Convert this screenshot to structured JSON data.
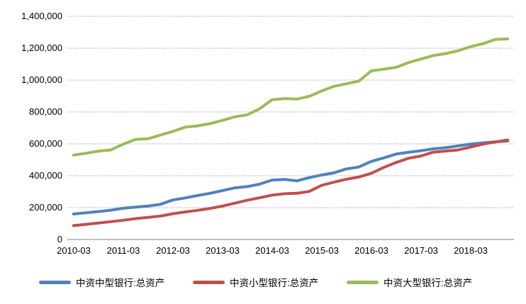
{
  "chart_data": {
    "type": "line",
    "title": "",
    "xlabel": "",
    "ylabel": "",
    "ylim": [
      0,
      1400000
    ],
    "y_tick_interval": 200000,
    "grid": "horizontal-dotted-gray",
    "legend_position": "bottom",
    "x": [
      "2010-03",
      "2010-06",
      "2010-09",
      "2010-12",
      "2011-03",
      "2011-06",
      "2011-09",
      "2011-12",
      "2012-03",
      "2012-06",
      "2012-09",
      "2012-12",
      "2013-03",
      "2013-06",
      "2013-09",
      "2013-12",
      "2014-03",
      "2014-06",
      "2014-09",
      "2014-12",
      "2015-03",
      "2015-06",
      "2015-09",
      "2015-12",
      "2016-03",
      "2016-06",
      "2016-09",
      "2016-12",
      "2017-03",
      "2017-06",
      "2017-09",
      "2017-12",
      "2018-03",
      "2018-06",
      "2018-09",
      "2018-12"
    ],
    "x_tick_labels": [
      "2010-03",
      "2011-03",
      "2012-03",
      "2013-03",
      "2014-03",
      "2015-03",
      "2016-03",
      "2017-03",
      "2018-03"
    ],
    "y_ticks": [
      "0",
      "200,000",
      "400,000",
      "600,000",
      "800,000",
      "1,000,000",
      "1,200,000",
      "1,400,000"
    ],
    "series": [
      {
        "name": "中资中型银行:总资产",
        "color": "#4F81BD",
        "values": [
          160000,
          168000,
          175000,
          184000,
          196000,
          203000,
          210000,
          221000,
          248000,
          261000,
          276000,
          290000,
          307000,
          324000,
          332000,
          347000,
          373000,
          377000,
          368000,
          388000,
          405000,
          418000,
          443000,
          455000,
          490000,
          512000,
          536000,
          547000,
          557000,
          569000,
          576000,
          587000,
          598000,
          606000,
          613000,
          618000
        ]
      },
      {
        "name": "中资小型银行:总资产",
        "color": "#C0504D",
        "values": [
          87000,
          95000,
          103000,
          112000,
          121000,
          131000,
          139000,
          147000,
          162000,
          173000,
          183000,
          195000,
          210000,
          228000,
          246000,
          262000,
          278000,
          287000,
          290000,
          302000,
          340000,
          360000,
          378000,
          392000,
          415000,
          452000,
          483000,
          510000,
          524000,
          548000,
          555000,
          562000,
          580000,
          598000,
          612000,
          624000
        ]
      },
      {
        "name": "中资大型银行:总资产",
        "color": "#9BBB59",
        "values": [
          530000,
          541000,
          554000,
          562000,
          598000,
          628000,
          632000,
          655000,
          678000,
          705000,
          713000,
          727000,
          747000,
          770000,
          782000,
          820000,
          877000,
          884000,
          881000,
          898000,
          932000,
          961000,
          977000,
          994000,
          1058000,
          1068000,
          1080000,
          1110000,
          1132000,
          1154000,
          1166000,
          1184000,
          1210000,
          1228000,
          1255000,
          1258000
        ]
      }
    ],
    "gridline_color": "#A6A6A6",
    "axis_line_color": "#808080"
  }
}
